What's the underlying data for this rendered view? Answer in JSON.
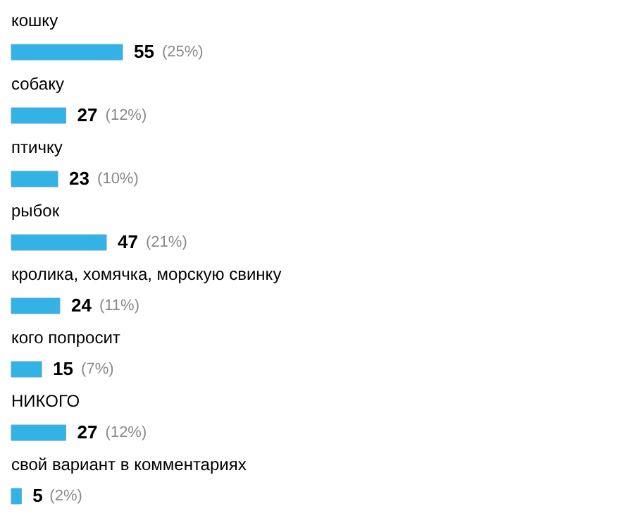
{
  "chart_data": {
    "type": "bar",
    "orientation": "horizontal",
    "categories": [
      "кошку",
      "собаку",
      "птичку",
      "рыбок",
      "кролика, хомячка, морскую свинку",
      "кого попросит",
      "НИКОГО",
      "свой вариант в комментариях"
    ],
    "values": [
      55,
      27,
      23,
      47,
      24,
      15,
      27,
      5
    ],
    "value_labels": [
      "55 (25%)",
      "27 (12%)",
      "23 (10%)",
      "47 (21%)",
      "24 (11%)",
      "15 (7%)",
      "27 (12%)",
      "5 (2%)"
    ],
    "color": "#33b2e6"
  }
}
